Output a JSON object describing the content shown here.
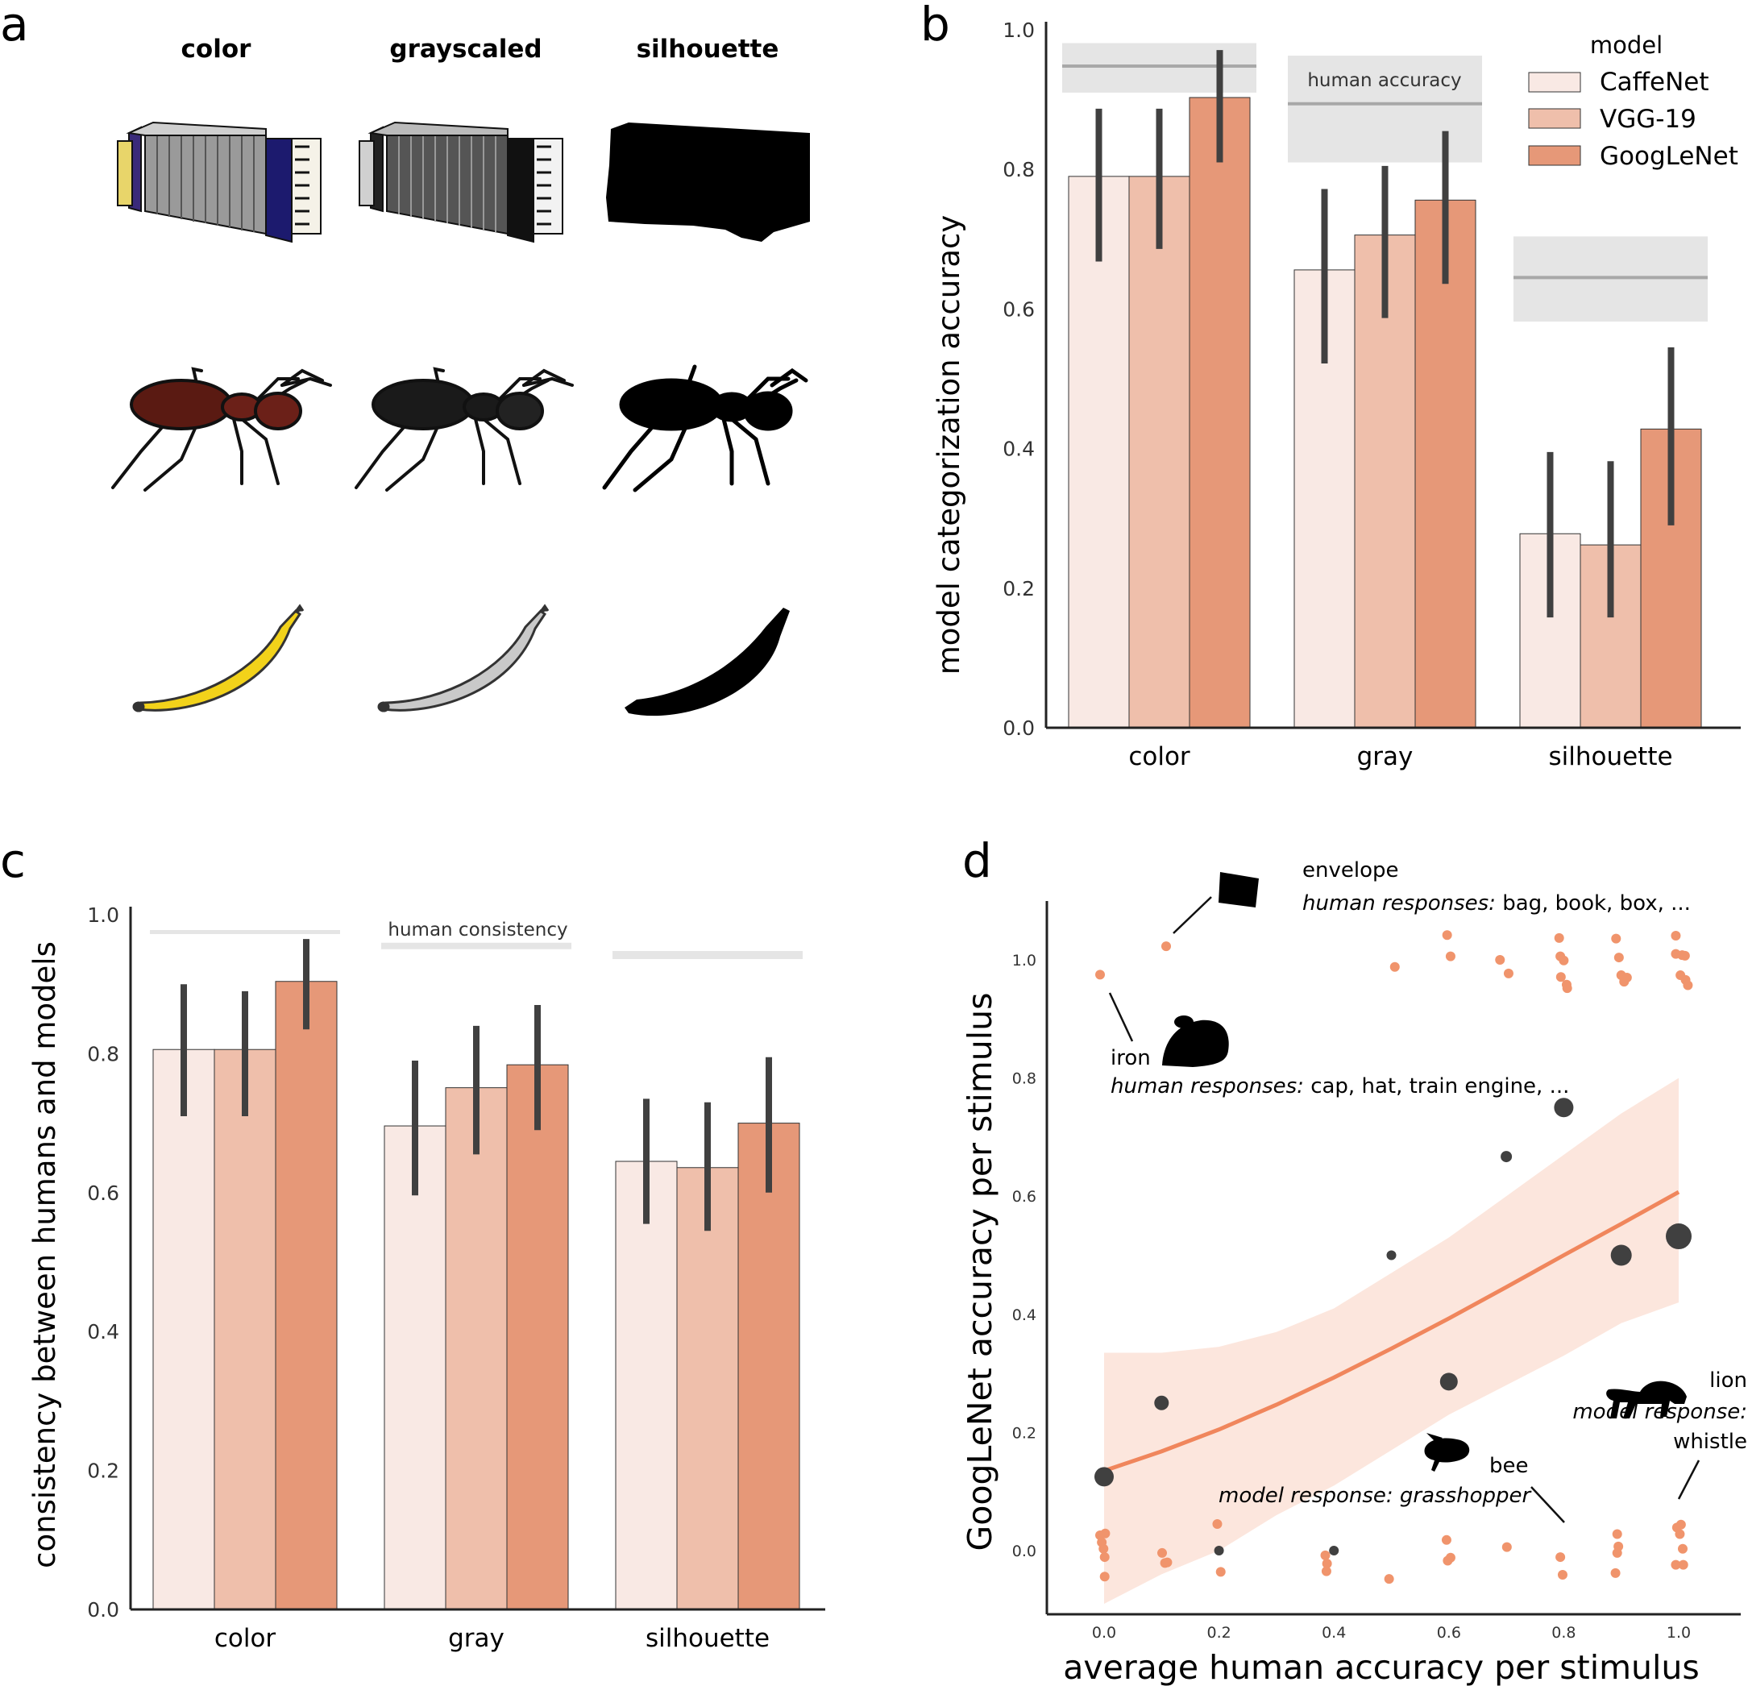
{
  "panels": {
    "a": {
      "letter": "a",
      "columns": [
        "color",
        "grayscaled",
        "silhouette"
      ],
      "rows": [
        "accordion",
        "ant",
        "banana"
      ]
    },
    "b": {
      "letter": "b",
      "legend_title": "model",
      "human_label": "human accuracy"
    },
    "c": {
      "letter": "c",
      "human_label": "human consistency"
    },
    "d": {
      "letter": "d",
      "annotations": {
        "envelope_name": "envelope",
        "envelope_prefix": "human responses:",
        "envelope_resp": " bag, book, box, ...",
        "iron_name": "iron",
        "iron_prefix": "human responses:",
        "iron_resp": " cap, hat, train engine, ...",
        "lion_name": "lion",
        "lion_prefix": "model response:",
        "lion_resp": "whistle",
        "bee_name": "bee",
        "bee_resp": "model response: grasshopper"
      }
    }
  },
  "colors": {
    "caffenet": "#f9e9e4",
    "vgg19": "#efbfab",
    "googlenet": "#e69878",
    "errorbar": "#404040",
    "human_line": "#a8a8a8",
    "human_band": "#e5e5e5",
    "scatter_orange": "#f0946c",
    "scatter_dark": "#404040",
    "fit_line": "#f0865c",
    "fit_band": "#fbe2d7"
  },
  "chart_data": [
    {
      "type": "bar",
      "panel": "b",
      "categories": [
        "color",
        "gray",
        "silhouette"
      ],
      "series": [
        {
          "name": "CaffeNet",
          "values": [
            0.79,
            0.656,
            0.278
          ],
          "ci_low": [
            0.668,
            0.522,
            0.158
          ],
          "ci_high": [
            0.887,
            0.772,
            0.395
          ]
        },
        {
          "name": "VGG-19",
          "values": [
            0.79,
            0.706,
            0.262
          ],
          "ci_low": [
            0.686,
            0.587,
            0.158
          ],
          "ci_high": [
            0.887,
            0.805,
            0.382
          ]
        },
        {
          "name": "GoogLeNet",
          "values": [
            0.903,
            0.756,
            0.428
          ],
          "ci_low": [
            0.81,
            0.636,
            0.29
          ],
          "ci_high": [
            0.971,
            0.855,
            0.545
          ]
        }
      ],
      "human": [
        {
          "category": "color",
          "value": 0.948,
          "low": 0.91,
          "high": 0.981
        },
        {
          "category": "gray",
          "value": 0.894,
          "low": 0.81,
          "high": 0.963
        },
        {
          "category": "silhouette",
          "value": 0.645,
          "low": 0.582,
          "high": 0.704
        }
      ],
      "xlabel": "",
      "ylabel": "model categorization accuracy",
      "ylim": [
        0,
        1.0
      ],
      "yticks": [
        "0.0",
        "0.2",
        "0.4",
        "0.6",
        "0.8",
        "1.0"
      ],
      "legend": "top-right",
      "grid": false
    },
    {
      "type": "bar",
      "panel": "c",
      "categories": [
        "color",
        "gray",
        "silhouette"
      ],
      "series": [
        {
          "name": "CaffeNet",
          "values": [
            0.806,
            0.696,
            0.645
          ],
          "ci_low": [
            0.71,
            0.596,
            0.555
          ],
          "ci_high": [
            0.9,
            0.79,
            0.735
          ]
        },
        {
          "name": "VGG-19",
          "values": [
            0.806,
            0.751,
            0.636
          ],
          "ci_low": [
            0.71,
            0.655,
            0.545
          ],
          "ci_high": [
            0.89,
            0.84,
            0.73
          ]
        },
        {
          "name": "GoogLeNet",
          "values": [
            0.904,
            0.784,
            0.7
          ],
          "ci_low": [
            0.835,
            0.69,
            0.6
          ],
          "ci_high": [
            0.965,
            0.87,
            0.795
          ]
        }
      ],
      "human": [
        {
          "category": "color",
          "value": 0.975
        },
        {
          "category": "gray",
          "value": 0.955
        },
        {
          "category": "silhouette",
          "value": 0.942
        }
      ],
      "xlabel": "",
      "ylabel": "consistency between humans and models",
      "ylim": [
        0,
        1.0
      ],
      "yticks": [
        "0.0",
        "0.2",
        "0.4",
        "0.6",
        "0.8",
        "1.0"
      ],
      "grid": false
    },
    {
      "type": "scatter",
      "panel": "d",
      "xlabel": "average human accuracy per stimulus",
      "ylabel": "GoogLeNet accuracy per stimulus",
      "xlim": [
        -0.1,
        1.1
      ],
      "ylim": [
        -0.08,
        1.1
      ],
      "xticks": [
        "0.0",
        "0.2",
        "0.4",
        "0.6",
        "0.8",
        "1.0"
      ],
      "yticks": [
        "0.0",
        "0.2",
        "0.4",
        "0.6",
        "0.8",
        "1.0"
      ],
      "orange_points": [
        [
          -0.007,
          0.975
        ],
        [
          0.108,
          1.023
        ],
        [
          0.506,
          0.988
        ],
        [
          0.597,
          1.042
        ],
        [
          0.603,
          1.006
        ],
        [
          0.689,
          1.0
        ],
        [
          0.704,
          0.977
        ],
        [
          0.792,
          1.037
        ],
        [
          0.794,
          1.006
        ],
        [
          0.795,
          0.971
        ],
        [
          0.8,
          0.999
        ],
        [
          0.805,
          0.958
        ],
        [
          0.806,
          0.952
        ],
        [
          0.891,
          1.036
        ],
        [
          0.896,
          1.004
        ],
        [
          0.9,
          0.974
        ],
        [
          0.905,
          0.963
        ],
        [
          0.91,
          0.97
        ],
        [
          0.995,
          1.041
        ],
        [
          0.995,
          1.01
        ],
        [
          1.003,
          0.974
        ],
        [
          1.006,
          1.008
        ],
        [
          1.011,
          1.007
        ],
        [
          1.012,
          0.966
        ],
        [
          1.016,
          0.957
        ],
        [
          -0.007,
          0.026
        ],
        [
          -0.004,
          0.014
        ],
        [
          0.002,
          0.029
        ],
        [
          0.001,
          -0.011
        ],
        [
          -0.001,
          0.003
        ],
        [
          0.001,
          -0.044
        ],
        [
          0.101,
          -0.004
        ],
        [
          0.106,
          -0.021
        ],
        [
          0.11,
          -0.02
        ],
        [
          0.197,
          0.045
        ],
        [
          0.203,
          -0.036
        ],
        [
          0.385,
          -0.008
        ],
        [
          0.388,
          -0.022
        ],
        [
          0.387,
          -0.035
        ],
        [
          0.496,
          -0.048
        ],
        [
          0.596,
          0.018
        ],
        [
          0.598,
          -0.017
        ],
        [
          0.603,
          -0.012
        ],
        [
          0.701,
          0.006
        ],
        [
          0.794,
          -0.011
        ],
        [
          0.798,
          -0.041
        ],
        [
          0.893,
          0.028
        ],
        [
          0.893,
          -0.004
        ],
        [
          0.895,
          0.007
        ],
        [
          0.89,
          -0.038
        ],
        [
          0.997,
          0.039
        ],
        [
          1.002,
          0.028
        ],
        [
          1.007,
          0.003
        ],
        [
          1.004,
          0.044
        ],
        [
          0.995,
          -0.024
        ],
        [
          1.008,
          -0.024
        ]
      ],
      "dark_points": [
        {
          "x": 0.0,
          "y": 0.125,
          "r": 12
        },
        {
          "x": 0.1,
          "y": 0.25,
          "r": 9
        },
        {
          "x": 0.2,
          "y": 0.0,
          "r": 6
        },
        {
          "x": 0.4,
          "y": 0.0,
          "r": 6
        },
        {
          "x": 0.5,
          "y": 0.5,
          "r": 6
        },
        {
          "x": 0.6,
          "y": 0.286,
          "r": 11
        },
        {
          "x": 0.7,
          "y": 0.667,
          "r": 7
        },
        {
          "x": 0.8,
          "y": 0.75,
          "r": 12
        },
        {
          "x": 0.9,
          "y": 0.5,
          "r": 13
        },
        {
          "x": 1.0,
          "y": 0.532,
          "r": 16
        }
      ],
      "fit": {
        "x": [
          0,
          0.1,
          0.2,
          0.3,
          0.4,
          0.5,
          0.6,
          0.7,
          0.8,
          0.9,
          1.0
        ],
        "y": [
          0.135,
          0.168,
          0.205,
          0.247,
          0.293,
          0.342,
          0.393,
          0.446,
          0.5,
          0.553,
          0.607
        ],
        "low": [
          -0.09,
          -0.04,
          0.0,
          0.06,
          0.11,
          0.17,
          0.23,
          0.28,
          0.33,
          0.385,
          0.42
        ],
        "high": [
          0.335,
          0.335,
          0.345,
          0.37,
          0.41,
          0.47,
          0.53,
          0.6,
          0.67,
          0.74,
          0.8
        ]
      }
    }
  ]
}
